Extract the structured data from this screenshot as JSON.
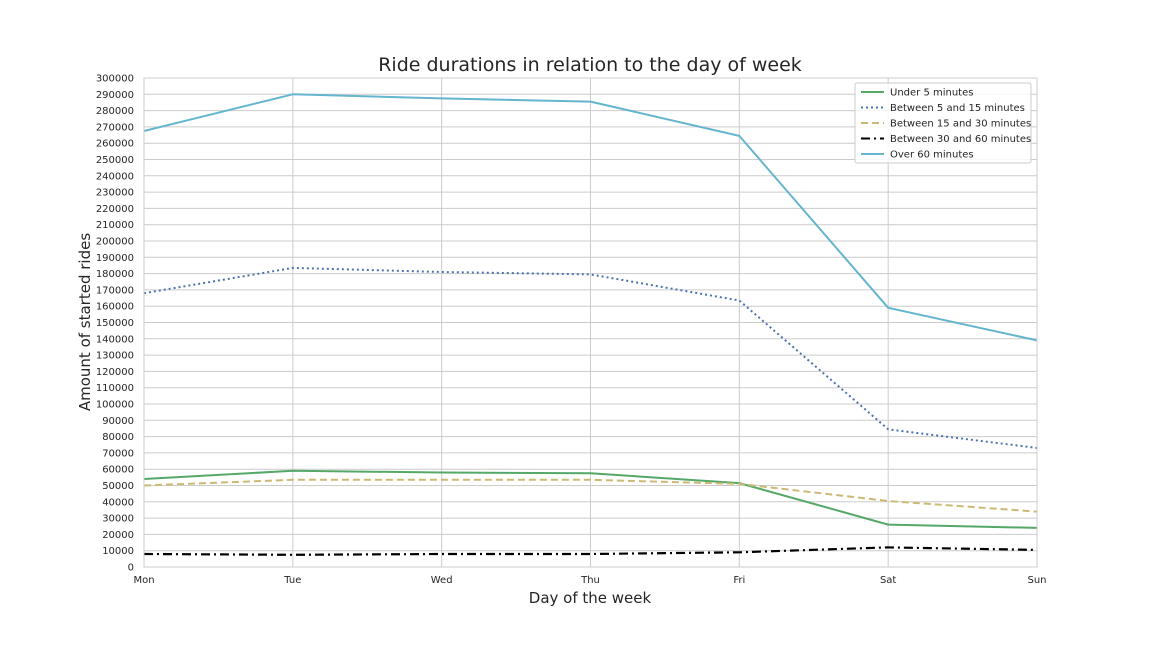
{
  "chart_data": {
    "type": "line",
    "title": "Ride durations in relation to the day of week",
    "xlabel": "Day of the week",
    "ylabel": "Amount of started rides",
    "categories": [
      "Mon",
      "Tue",
      "Wed",
      "Thu",
      "Fri",
      "Sat",
      "Sun"
    ],
    "ylim": [
      0,
      300000
    ],
    "ytick_step": 10000,
    "grid": true,
    "legend_position": "top-right",
    "series": [
      {
        "name": "Under 5 minutes",
        "color": "#55a868",
        "style": "solid",
        "values": [
          54000,
          59000,
          58000,
          57500,
          51500,
          26000,
          24000
        ]
      },
      {
        "name": "Between 5 and 15 minutes",
        "color": "#4c72b0",
        "style": "dotted",
        "values": [
          168000,
          183500,
          181000,
          179500,
          163500,
          84500,
          73000
        ]
      },
      {
        "name": "Between 15 and 30 minutes",
        "color": "#ccb974",
        "style": "dashed",
        "values": [
          50000,
          53500,
          53500,
          53500,
          51000,
          40500,
          34000
        ]
      },
      {
        "name": "Between 30 and 60 minutes",
        "color": "#000000",
        "style": "dashdot",
        "values": [
          8000,
          7500,
          8000,
          8000,
          9000,
          12000,
          10500
        ]
      },
      {
        "name": "Over 60 minutes",
        "color": "#64b5cd",
        "style": "solid",
        "values": [
          267500,
          290000,
          287500,
          285500,
          264500,
          159000,
          139000
        ]
      }
    ]
  }
}
